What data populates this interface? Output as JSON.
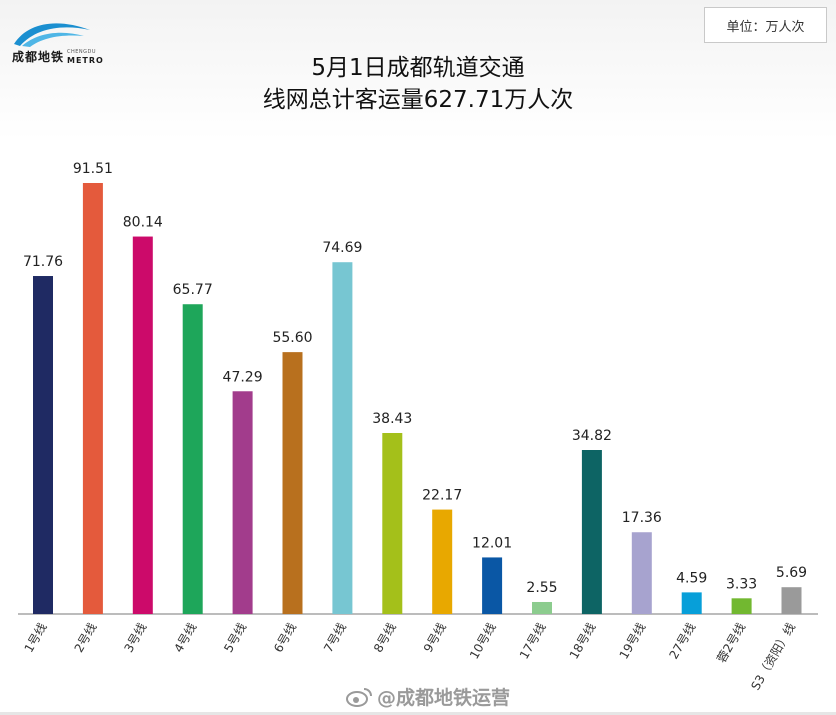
{
  "logo": {
    "name_cn": "成都地铁",
    "name_en_top": "CHENGDU",
    "name_en": "METRO"
  },
  "unit_label": "单位：万人次",
  "chart_data": {
    "type": "bar",
    "title_line1": "5月1日成都轨道交通",
    "title_line2": "线网总计客运量627.71万人次",
    "categories": [
      "1号线",
      "2号线",
      "3号线",
      "4号线",
      "5号线",
      "6号线",
      "7号线",
      "8号线",
      "9号线",
      "10号线",
      "17号线",
      "18号线",
      "19号线",
      "27号线",
      "蓉2号线",
      "S3（资阳）线"
    ],
    "values": [
      71.76,
      91.51,
      80.14,
      65.77,
      47.29,
      55.6,
      74.69,
      38.43,
      22.17,
      12.01,
      2.55,
      34.82,
      17.36,
      4.59,
      3.33,
      5.69
    ],
    "value_labels": [
      "71.76",
      "91.51",
      "80.14",
      "65.77",
      "47.29",
      "55.60",
      "74.69",
      "38.43",
      "22.17",
      "12.01",
      "2.55",
      "34.82",
      "17.36",
      "4.59",
      "3.33",
      "5.69"
    ],
    "colors": [
      "#1f2a63",
      "#e45a3c",
      "#cc0a6a",
      "#1ea65a",
      "#a23c8c",
      "#b8701e",
      "#77c6d2",
      "#a4c01a",
      "#e8a800",
      "#0a57a5",
      "#8ccc8e",
      "#0d6464",
      "#a7a3cf",
      "#079fd9",
      "#72b830",
      "#9a9a9a"
    ],
    "ylim": [
      0,
      100
    ],
    "grid": false
  },
  "watermark": "@成都地铁运营"
}
